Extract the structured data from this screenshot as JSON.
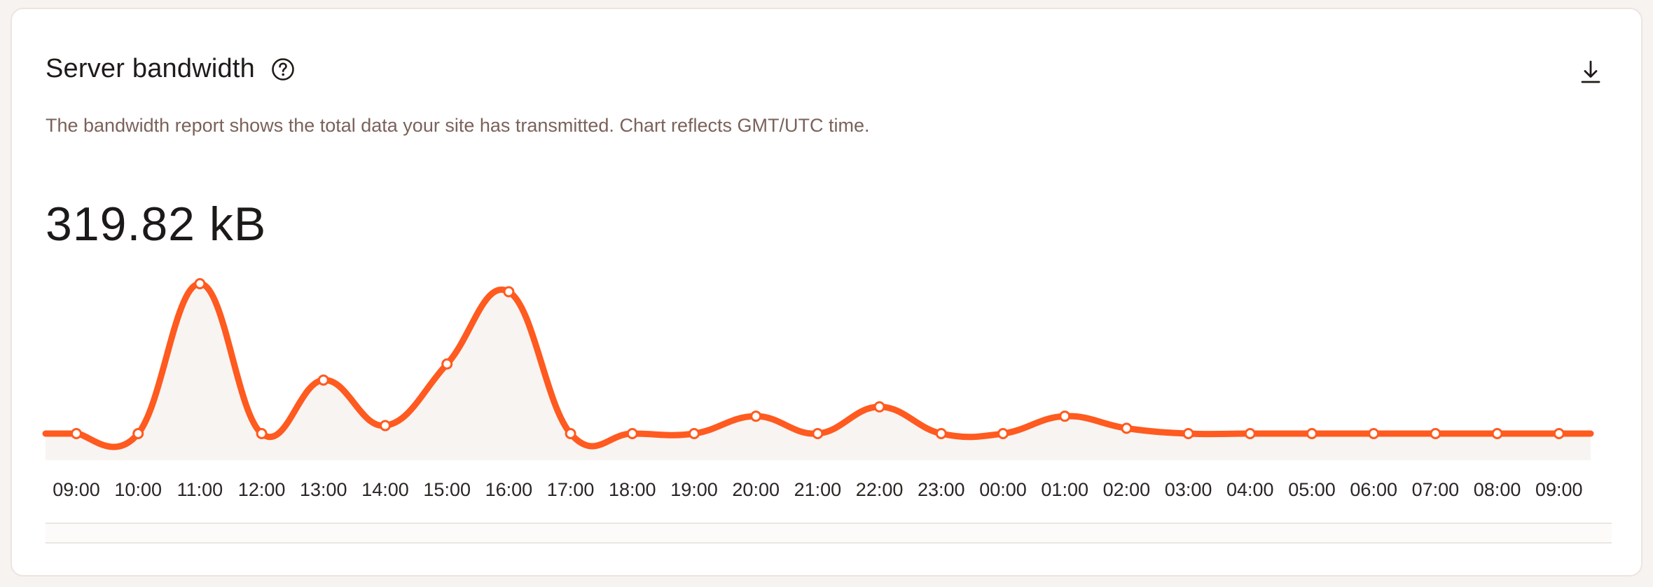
{
  "card": {
    "title": "Server bandwidth",
    "description": "The bandwidth report shows the total data your site has transmitted. Chart reflects GMT/UTC time.",
    "total": "319.82 kB",
    "help_icon": "question-circle-icon",
    "download_icon": "download-icon"
  },
  "colors": {
    "line": "#ff5a1f",
    "area": "#f8f4f2",
    "text_muted": "#7a625a"
  },
  "chart_data": {
    "type": "area",
    "categories": [
      "09:00",
      "10:00",
      "11:00",
      "12:00",
      "13:00",
      "14:00",
      "15:00",
      "16:00",
      "17:00",
      "18:00",
      "19:00",
      "20:00",
      "21:00",
      "22:00",
      "23:00",
      "00:00",
      "01:00",
      "02:00",
      "03:00",
      "04:00",
      "05:00",
      "06:00",
      "07:00",
      "08:00",
      "09:00"
    ],
    "series": [
      {
        "values": [
          0,
          0,
          56,
          0,
          20,
          3,
          26,
          53,
          0,
          0,
          0,
          6.5,
          0,
          10,
          0,
          0,
          6.5,
          2,
          0,
          0,
          0,
          0,
          0,
          0,
          0
        ]
      }
    ],
    "ylim": [
      0,
      60
    ],
    "grid": false,
    "legend": "none"
  }
}
